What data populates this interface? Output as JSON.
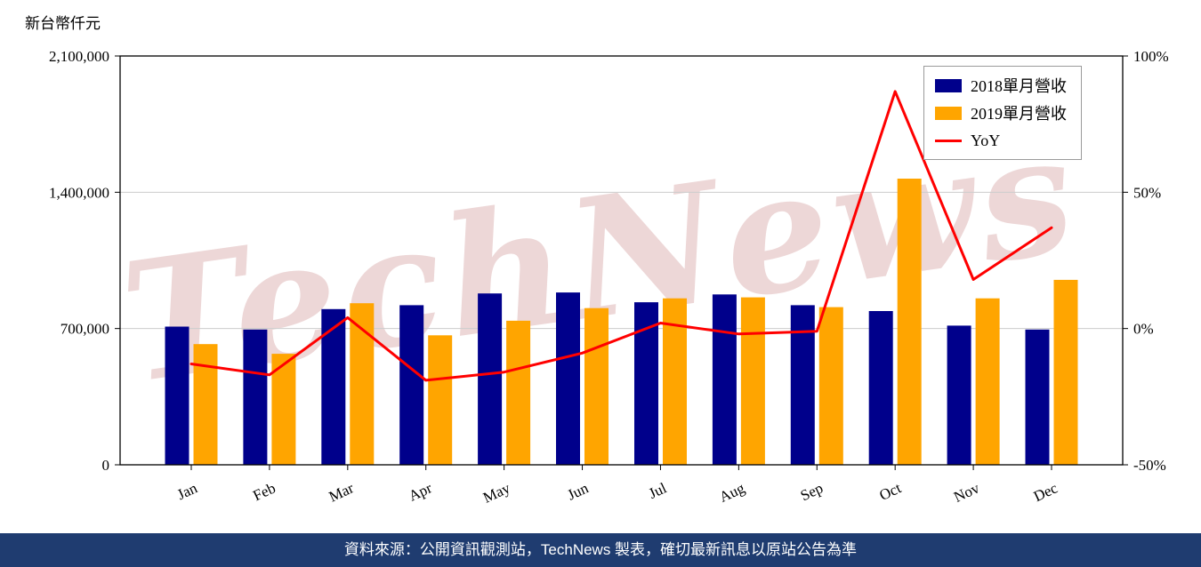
{
  "unit_label": "新台幣仟元",
  "watermark": "TechNews",
  "footer": {
    "text": "資料來源：公開資訊觀測站，TechNews 製表，確切最新訊息以原站公告為準",
    "bg": "#1f3c70"
  },
  "legend": {
    "items": [
      {
        "label": "2018單月營收",
        "color": "#00008B",
        "marker": "square"
      },
      {
        "label": "2019單月營收",
        "color": "#FFA500",
        "marker": "square"
      },
      {
        "label": "YoY",
        "color": "#FF0000",
        "marker": "line"
      }
    ]
  },
  "chart_data": {
    "type": "bar",
    "title": "",
    "categories": [
      "Jan",
      "Feb",
      "Mar",
      "Apr",
      "May",
      "Jun",
      "Jul",
      "Aug",
      "Sep",
      "Oct",
      "Nov",
      "Dec"
    ],
    "series": [
      {
        "name": "2018單月營收",
        "type": "bar",
        "axis": "left",
        "color": "#00008B",
        "values": [
          710000,
          695000,
          800000,
          820000,
          880000,
          885000,
          835000,
          875000,
          820000,
          790000,
          715000,
          695000
        ]
      },
      {
        "name": "2019單月營收",
        "type": "bar",
        "axis": "left",
        "color": "#FFA500",
        "values": [
          620000,
          570000,
          830000,
          665000,
          740000,
          805000,
          855000,
          860000,
          810000,
          1470000,
          855000,
          950000
        ]
      },
      {
        "name": "YoY",
        "type": "line",
        "axis": "right",
        "color": "#FF0000",
        "values": [
          -13,
          -17,
          4,
          -19,
          -16,
          -9,
          2,
          -2,
          -1,
          87,
          18,
          37
        ]
      }
    ],
    "left_axis": {
      "label": "新台幣仟元",
      "min": 0,
      "max": 2100000,
      "ticks": [
        0,
        700000,
        1400000,
        2100000
      ],
      "tick_labels": [
        "0",
        "700,000",
        "1,400,000",
        "2,100,000"
      ]
    },
    "right_axis": {
      "min": -50,
      "max": 100,
      "ticks": [
        -50,
        0,
        50,
        100
      ],
      "tick_labels": [
        "-50%",
        "0%",
        "50%",
        "100%"
      ]
    },
    "grid": true,
    "legend_position": "top-right"
  }
}
